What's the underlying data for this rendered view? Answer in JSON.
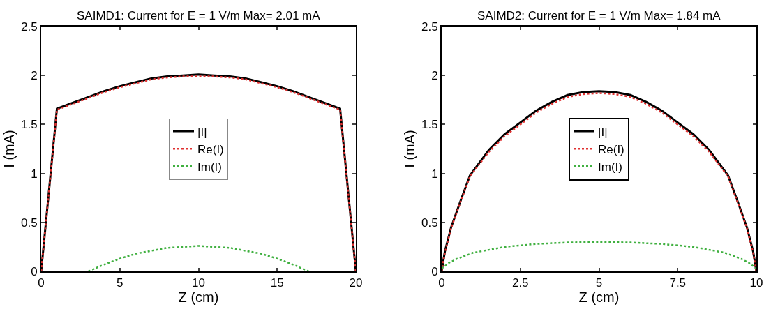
{
  "chart_data": [
    {
      "type": "line",
      "title": "SAIMD1: Current for E = 1 V/m Max= 2.01 mA",
      "xlabel": "Z (cm)",
      "ylabel": "I (mA)",
      "xlim": [
        0,
        20
      ],
      "xticks": [
        0,
        5,
        10,
        15,
        20
      ],
      "ylim": [
        0,
        2.5
      ],
      "yticks": [
        0,
        0.5,
        1,
        1.5,
        2,
        2.5
      ],
      "legend": "center",
      "marker": "none",
      "series": [
        {
          "name": "|I|",
          "color": "#000000",
          "line_style": "solid",
          "x": [
            0,
            1,
            2,
            3,
            4,
            5,
            6,
            7,
            8,
            9,
            10,
            11,
            12,
            13,
            14,
            15,
            16,
            17,
            18,
            19,
            20
          ],
          "values": [
            0,
            1.66,
            1.72,
            1.78,
            1.84,
            1.89,
            1.93,
            1.97,
            1.99,
            2.0,
            2.01,
            2.0,
            1.99,
            1.97,
            1.93,
            1.89,
            1.84,
            1.78,
            1.72,
            1.66,
            0
          ]
        },
        {
          "name": "Re(I)",
          "color": "#e03030",
          "line_style": "dotted",
          "x": [
            0,
            1,
            2,
            3,
            4,
            5,
            6,
            7,
            8,
            9,
            10,
            11,
            12,
            13,
            14,
            15,
            16,
            17,
            18,
            19,
            20
          ],
          "values": [
            0,
            1.65,
            1.71,
            1.77,
            1.83,
            1.88,
            1.92,
            1.96,
            1.98,
            1.99,
            1.99,
            1.99,
            1.98,
            1.96,
            1.92,
            1.88,
            1.83,
            1.77,
            1.71,
            1.65,
            0
          ]
        },
        {
          "name": "Im(I)",
          "color": "#40b040",
          "line_style": "dotted",
          "x": [
            3,
            4,
            5,
            6,
            7,
            8,
            9,
            10,
            11,
            12,
            13,
            14,
            15,
            16,
            17
          ],
          "values": [
            0,
            0.07,
            0.13,
            0.18,
            0.21,
            0.24,
            0.25,
            0.26,
            0.25,
            0.24,
            0.21,
            0.18,
            0.13,
            0.07,
            0
          ]
        }
      ]
    },
    {
      "type": "line",
      "title": "SAIMD2: Current for E = 1 V/m Max= 1.84 mA",
      "xlabel": "Z (cm)",
      "ylabel": "I (mA)",
      "xlim": [
        0,
        10
      ],
      "xticks": [
        0,
        2.5,
        5,
        7.5,
        10
      ],
      "ylim": [
        0,
        2.5
      ],
      "yticks": [
        0,
        0.5,
        1,
        1.5,
        2,
        2.5
      ],
      "legend": "center",
      "marker": "none",
      "series": [
        {
          "name": "|I|",
          "color": "#000000",
          "line_style": "solid",
          "x": [
            0,
            0.1,
            0.3,
            0.6,
            0.9,
            1.5,
            2,
            2.5,
            3,
            3.5,
            4,
            4.5,
            5,
            5.5,
            6,
            6.5,
            7,
            7.5,
            8,
            8.5,
            9.1,
            9.4,
            9.7,
            9.9,
            10
          ],
          "values": [
            0,
            0.2,
            0.45,
            0.72,
            0.98,
            1.24,
            1.4,
            1.52,
            1.64,
            1.73,
            1.8,
            1.83,
            1.84,
            1.83,
            1.8,
            1.73,
            1.64,
            1.52,
            1.4,
            1.24,
            0.98,
            0.72,
            0.45,
            0.2,
            0
          ]
        },
        {
          "name": "Re(I)",
          "color": "#e03030",
          "line_style": "dotted",
          "x": [
            0,
            0.1,
            0.3,
            0.6,
            0.9,
            1.5,
            2,
            2.5,
            3,
            3.5,
            4,
            4.5,
            5,
            5.5,
            6,
            6.5,
            7,
            7.5,
            8,
            8.5,
            9.1,
            9.4,
            9.7,
            9.9,
            10
          ],
          "values": [
            0,
            0.19,
            0.44,
            0.71,
            0.97,
            1.22,
            1.38,
            1.5,
            1.62,
            1.71,
            1.78,
            1.81,
            1.82,
            1.81,
            1.78,
            1.71,
            1.62,
            1.5,
            1.38,
            1.22,
            0.97,
            0.71,
            0.44,
            0.19,
            0
          ]
        },
        {
          "name": "Im(I)",
          "color": "#40b040",
          "line_style": "dotted",
          "x": [
            0,
            0.25,
            0.5,
            1,
            1.5,
            2,
            3,
            4,
            5,
            6,
            7,
            8,
            8.5,
            9,
            9.5,
            9.75,
            10
          ],
          "values": [
            0.03,
            0.09,
            0.13,
            0.19,
            0.22,
            0.25,
            0.28,
            0.295,
            0.3,
            0.295,
            0.28,
            0.25,
            0.22,
            0.19,
            0.13,
            0.09,
            0.03
          ]
        }
      ]
    }
  ]
}
